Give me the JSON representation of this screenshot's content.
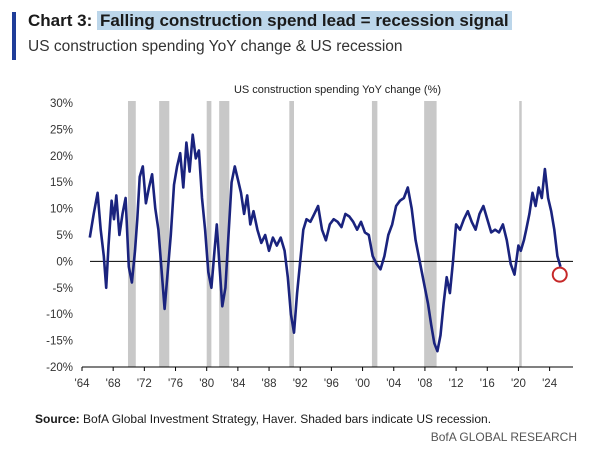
{
  "header": {
    "chart_label": "Chart 3:",
    "title": "Falling construction spend lead = recession signal",
    "subtitle": "US construction spending YoY change & US recession"
  },
  "footer": {
    "source_label": "Source:",
    "source_text": "BofA Global Investment Strategy, Haver. Shaded bars indicate US recession.",
    "brand": "BofA GLOBAL RESEARCH"
  },
  "colors": {
    "line": "#1a237e",
    "recession": "#c8c8c8",
    "highlight_circle": "#c62828",
    "title_highlight": "#bcd6ea"
  },
  "chart_data": {
    "type": "line",
    "plot_title": "US construction spending YoY change (%)",
    "xlim": [
      1964,
      2027
    ],
    "ylim": [
      -20,
      30
    ],
    "y_ticks": [
      -20,
      -15,
      -10,
      -5,
      0,
      5,
      10,
      15,
      20,
      25,
      30
    ],
    "y_tick_labels": [
      "-20%",
      "-15%",
      "-10%",
      "-5%",
      "0%",
      "5%",
      "10%",
      "15%",
      "20%",
      "25%",
      "30%"
    ],
    "x_ticks": [
      1964,
      1968,
      1972,
      1976,
      1980,
      1984,
      1988,
      1992,
      1996,
      2000,
      2004,
      2008,
      2012,
      2016,
      2020,
      2024
    ],
    "x_tick_labels": [
      "'64",
      "'68",
      "'72",
      "'76",
      "'80",
      "'84",
      "'88",
      "'92",
      "'96",
      "'00",
      "'04",
      "'08",
      "'12",
      "'16",
      "'20",
      "'24"
    ],
    "recessions": [
      [
        1969.9,
        1970.9
      ],
      [
        1973.9,
        1975.2
      ],
      [
        1980.0,
        1980.6
      ],
      [
        1981.6,
        1982.9
      ],
      [
        1990.6,
        1991.2
      ],
      [
        2001.2,
        2001.9
      ],
      [
        2007.9,
        2009.5
      ],
      [
        2020.1,
        2020.4
      ]
    ],
    "highlight": {
      "x": 2025.3,
      "y": -2.5
    },
    "series": [
      {
        "x": [
          1965.0,
          1965.5,
          1966.0,
          1966.4,
          1966.8,
          1967.1,
          1967.4,
          1967.8,
          1968.1,
          1968.4,
          1968.8,
          1969.2,
          1969.6,
          1970.0,
          1970.4,
          1970.8,
          1971.1,
          1971.4,
          1971.8,
          1972.2,
          1972.6,
          1973.0,
          1973.4,
          1973.8,
          1974.2,
          1974.6,
          1975.0,
          1975.4,
          1975.8,
          1976.2,
          1976.6,
          1977.0,
          1977.4,
          1977.8,
          1978.2,
          1978.6,
          1979.0,
          1979.4,
          1979.8,
          1980.2,
          1980.6,
          1981.0,
          1981.3,
          1981.6,
          1982.0,
          1982.4,
          1982.8,
          1983.2,
          1983.6,
          1984.0,
          1984.4,
          1984.8,
          1985.2,
          1985.6,
          1986.0,
          1986.5,
          1987.0,
          1987.5,
          1988.0,
          1988.5,
          1989.0,
          1989.5,
          1990.0,
          1990.4,
          1990.8,
          1991.2,
          1991.6,
          1992.0,
          1992.4,
          1992.8,
          1993.3,
          1993.8,
          1994.3,
          1994.8,
          1995.3,
          1995.8,
          1996.3,
          1996.8,
          1997.3,
          1997.8,
          1998.3,
          1998.8,
          1999.3,
          1999.8,
          2000.3,
          2000.8,
          2001.3,
          2001.8,
          2002.3,
          2002.8,
          2003.3,
          2003.8,
          2004.3,
          2004.8,
          2005.3,
          2005.8,
          2006.3,
          2006.8,
          2007.2,
          2007.6,
          2008.0,
          2008.4,
          2008.8,
          2009.2,
          2009.6,
          2010.0,
          2010.4,
          2010.8,
          2011.2,
          2011.6,
          2012.0,
          2012.5,
          2013.0,
          2013.5,
          2014.0,
          2014.5,
          2015.0,
          2015.5,
          2016.0,
          2016.5,
          2017.0,
          2017.5,
          2018.0,
          2018.5,
          2019.0,
          2019.5,
          2020.0,
          2020.3,
          2020.7,
          2021.0,
          2021.4,
          2021.8,
          2022.2,
          2022.6,
          2023.0,
          2023.4,
          2023.8,
          2024.2,
          2024.6,
          2025.0,
          2025.4
        ],
        "y": [
          4.5,
          9.0,
          13.0,
          6.0,
          1.0,
          -5.0,
          3.0,
          11.5,
          8.0,
          12.5,
          5.0,
          9.0,
          12.0,
          -1.0,
          -4.0,
          2.0,
          8.0,
          16.0,
          18.0,
          11.0,
          14.0,
          16.5,
          10.0,
          6.0,
          -1.5,
          -9.0,
          -2.0,
          5.0,
          14.5,
          18.0,
          20.5,
          14.0,
          22.5,
          17.0,
          24.0,
          19.5,
          21.0,
          12.0,
          6.0,
          -2.0,
          -5.0,
          2.0,
          7.0,
          0.0,
          -8.5,
          -5.0,
          5.0,
          15.0,
          18.0,
          15.5,
          13.0,
          9.0,
          12.5,
          7.0,
          9.5,
          6.0,
          3.5,
          5.0,
          2.0,
          4.5,
          3.0,
          4.5,
          2.0,
          -3.0,
          -10.0,
          -13.5,
          -6.0,
          0.0,
          6.0,
          8.0,
          7.5,
          9.0,
          10.5,
          6.0,
          4.0,
          7.0,
          8.0,
          7.5,
          6.5,
          9.0,
          8.5,
          7.5,
          6.0,
          7.5,
          5.5,
          5.0,
          1.0,
          -0.5,
          -1.5,
          1.0,
          5.0,
          7.0,
          10.5,
          11.5,
          12.0,
          14.0,
          10.0,
          4.0,
          1.0,
          -2.0,
          -5.0,
          -8.0,
          -12.0,
          -15.5,
          -17.0,
          -14.0,
          -8.0,
          -3.0,
          -6.0,
          0.0,
          7.0,
          6.0,
          8.0,
          9.5,
          7.5,
          6.0,
          9.0,
          10.5,
          8.0,
          5.5,
          6.0,
          5.5,
          7.0,
          4.0,
          -0.5,
          -2.5,
          3.0,
          2.0,
          4.0,
          6.0,
          9.0,
          13.0,
          10.5,
          14.0,
          12.0,
          17.5,
          12.0,
          9.5,
          6.0,
          1.0,
          -1.0
        ]
      }
    ]
  }
}
